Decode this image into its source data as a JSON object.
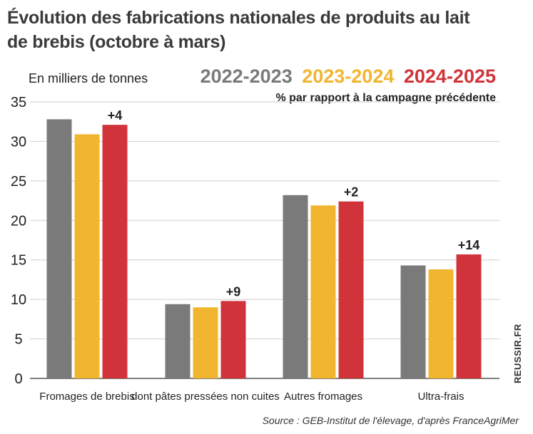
{
  "title_line1": "Évolution des fabrications nationales de produits au lait",
  "title_line2": "de brebis (octobre à mars)",
  "unit_label": "En milliers de tonnes",
  "subnote": "% par rapport à la campagne précédente",
  "source": "Source : GEB-Institut de l'élevage, d'après FranceAgriMer",
  "brand": "REUSSIR.FR",
  "chart_data": {
    "type": "bar",
    "title": "Évolution des fabrications nationales de produits au lait de brebis (octobre à mars)",
    "ylabel": "En milliers de tonnes",
    "ylim": [
      0,
      35
    ],
    "yticks": [
      0,
      5,
      10,
      15,
      20,
      25,
      30,
      35
    ],
    "grid": true,
    "legend_position": "top-right",
    "categories": [
      "Fromages de brebis",
      "dont pâtes pressées non cuites",
      "Autres fromages",
      "Ultra-frais"
    ],
    "series": [
      {
        "name": "2022-2023",
        "color": "#7a7a7a",
        "values": [
          32.8,
          9.4,
          23.2,
          14.3
        ]
      },
      {
        "name": "2023-2024",
        "color": "#f2b530",
        "values": [
          30.9,
          9.0,
          21.9,
          13.8
        ]
      },
      {
        "name": "2024-2025",
        "color": "#d0343a",
        "values": [
          32.1,
          9.8,
          22.4,
          15.7
        ]
      }
    ],
    "annotations": [
      "+4",
      "+9",
      "+2",
      "+14"
    ]
  }
}
